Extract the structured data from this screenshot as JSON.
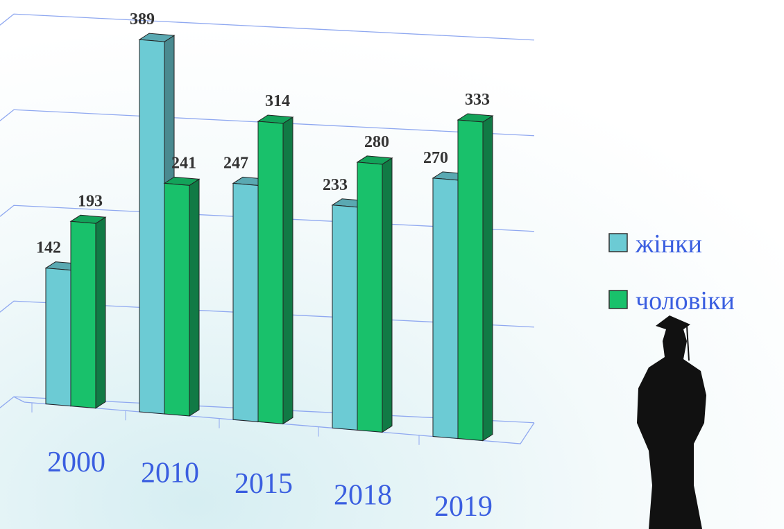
{
  "chart_data": {
    "type": "bar3d",
    "categories": [
      "2000",
      "2010",
      "2015",
      "2018",
      "2019"
    ],
    "series": [
      {
        "name": "жінки",
        "color": "#6ccbd4",
        "values": [
          142,
          389,
          247,
          233,
          270
        ]
      },
      {
        "name": "чоловіки",
        "color": "#19c16b",
        "values": [
          193,
          241,
          314,
          280,
          333
        ]
      }
    ],
    "ylim": [
      0,
      400
    ],
    "yticks": [
      0,
      100,
      200,
      300,
      400
    ],
    "grid": true,
    "legend": "right"
  }
}
